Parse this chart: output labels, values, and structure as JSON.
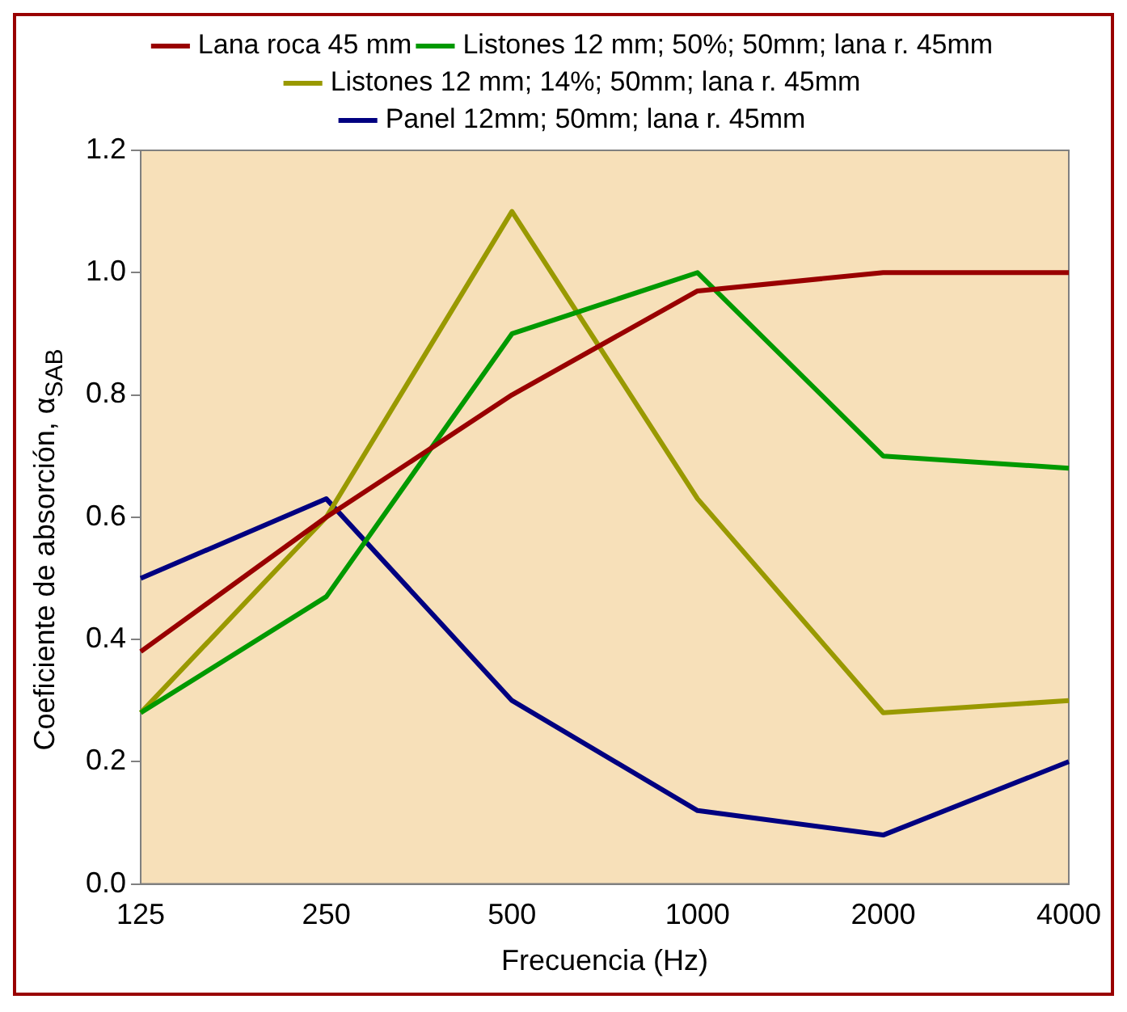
{
  "chart_data": {
    "type": "line",
    "xlabel": "Frecuencia (Hz)",
    "ylabel": "Coeficiente de absorción, α$_{SAB}$",
    "categories": [
      "125",
      "250",
      "500",
      "1000",
      "2000",
      "4000"
    ],
    "series": [
      {
        "name": "Lana roca 45 mm",
        "color": "#990000",
        "values": [
          0.38,
          0.6,
          0.8,
          0.97,
          1.0,
          1.0
        ]
      },
      {
        "name": "Listones 12 mm; 50%; 50mm; lana r. 45mm",
        "color": "#009900",
        "values": [
          0.28,
          0.47,
          0.9,
          1.0,
          0.7,
          0.68
        ]
      },
      {
        "name": "Listones 12 mm; 14%; 50mm; lana r. 45mm",
        "color": "#999900",
        "values": [
          0.28,
          0.6,
          1.1,
          0.63,
          0.28,
          0.3
        ]
      },
      {
        "name": "Panel 12mm; 50mm; lana r. 45mm",
        "color": "#000080",
        "values": [
          0.5,
          0.63,
          0.3,
          0.12,
          0.08,
          0.2
        ]
      }
    ],
    "ylim": [
      0,
      1.2
    ],
    "yticks": [
      {
        "value": 0,
        "label": "0.0"
      },
      {
        "value": 0.2,
        "label": "0.2"
      },
      {
        "value": 0.4,
        "label": "0.4"
      },
      {
        "value": 0.6,
        "label": "0.6"
      },
      {
        "value": 0.8,
        "label": "0.8"
      },
      {
        "value": 1.0,
        "label": "1.0"
      },
      {
        "value": 1.2,
        "label": "1.2"
      }
    ],
    "grid": false,
    "legend": "top",
    "marker": "none",
    "line_style": "solid"
  }
}
